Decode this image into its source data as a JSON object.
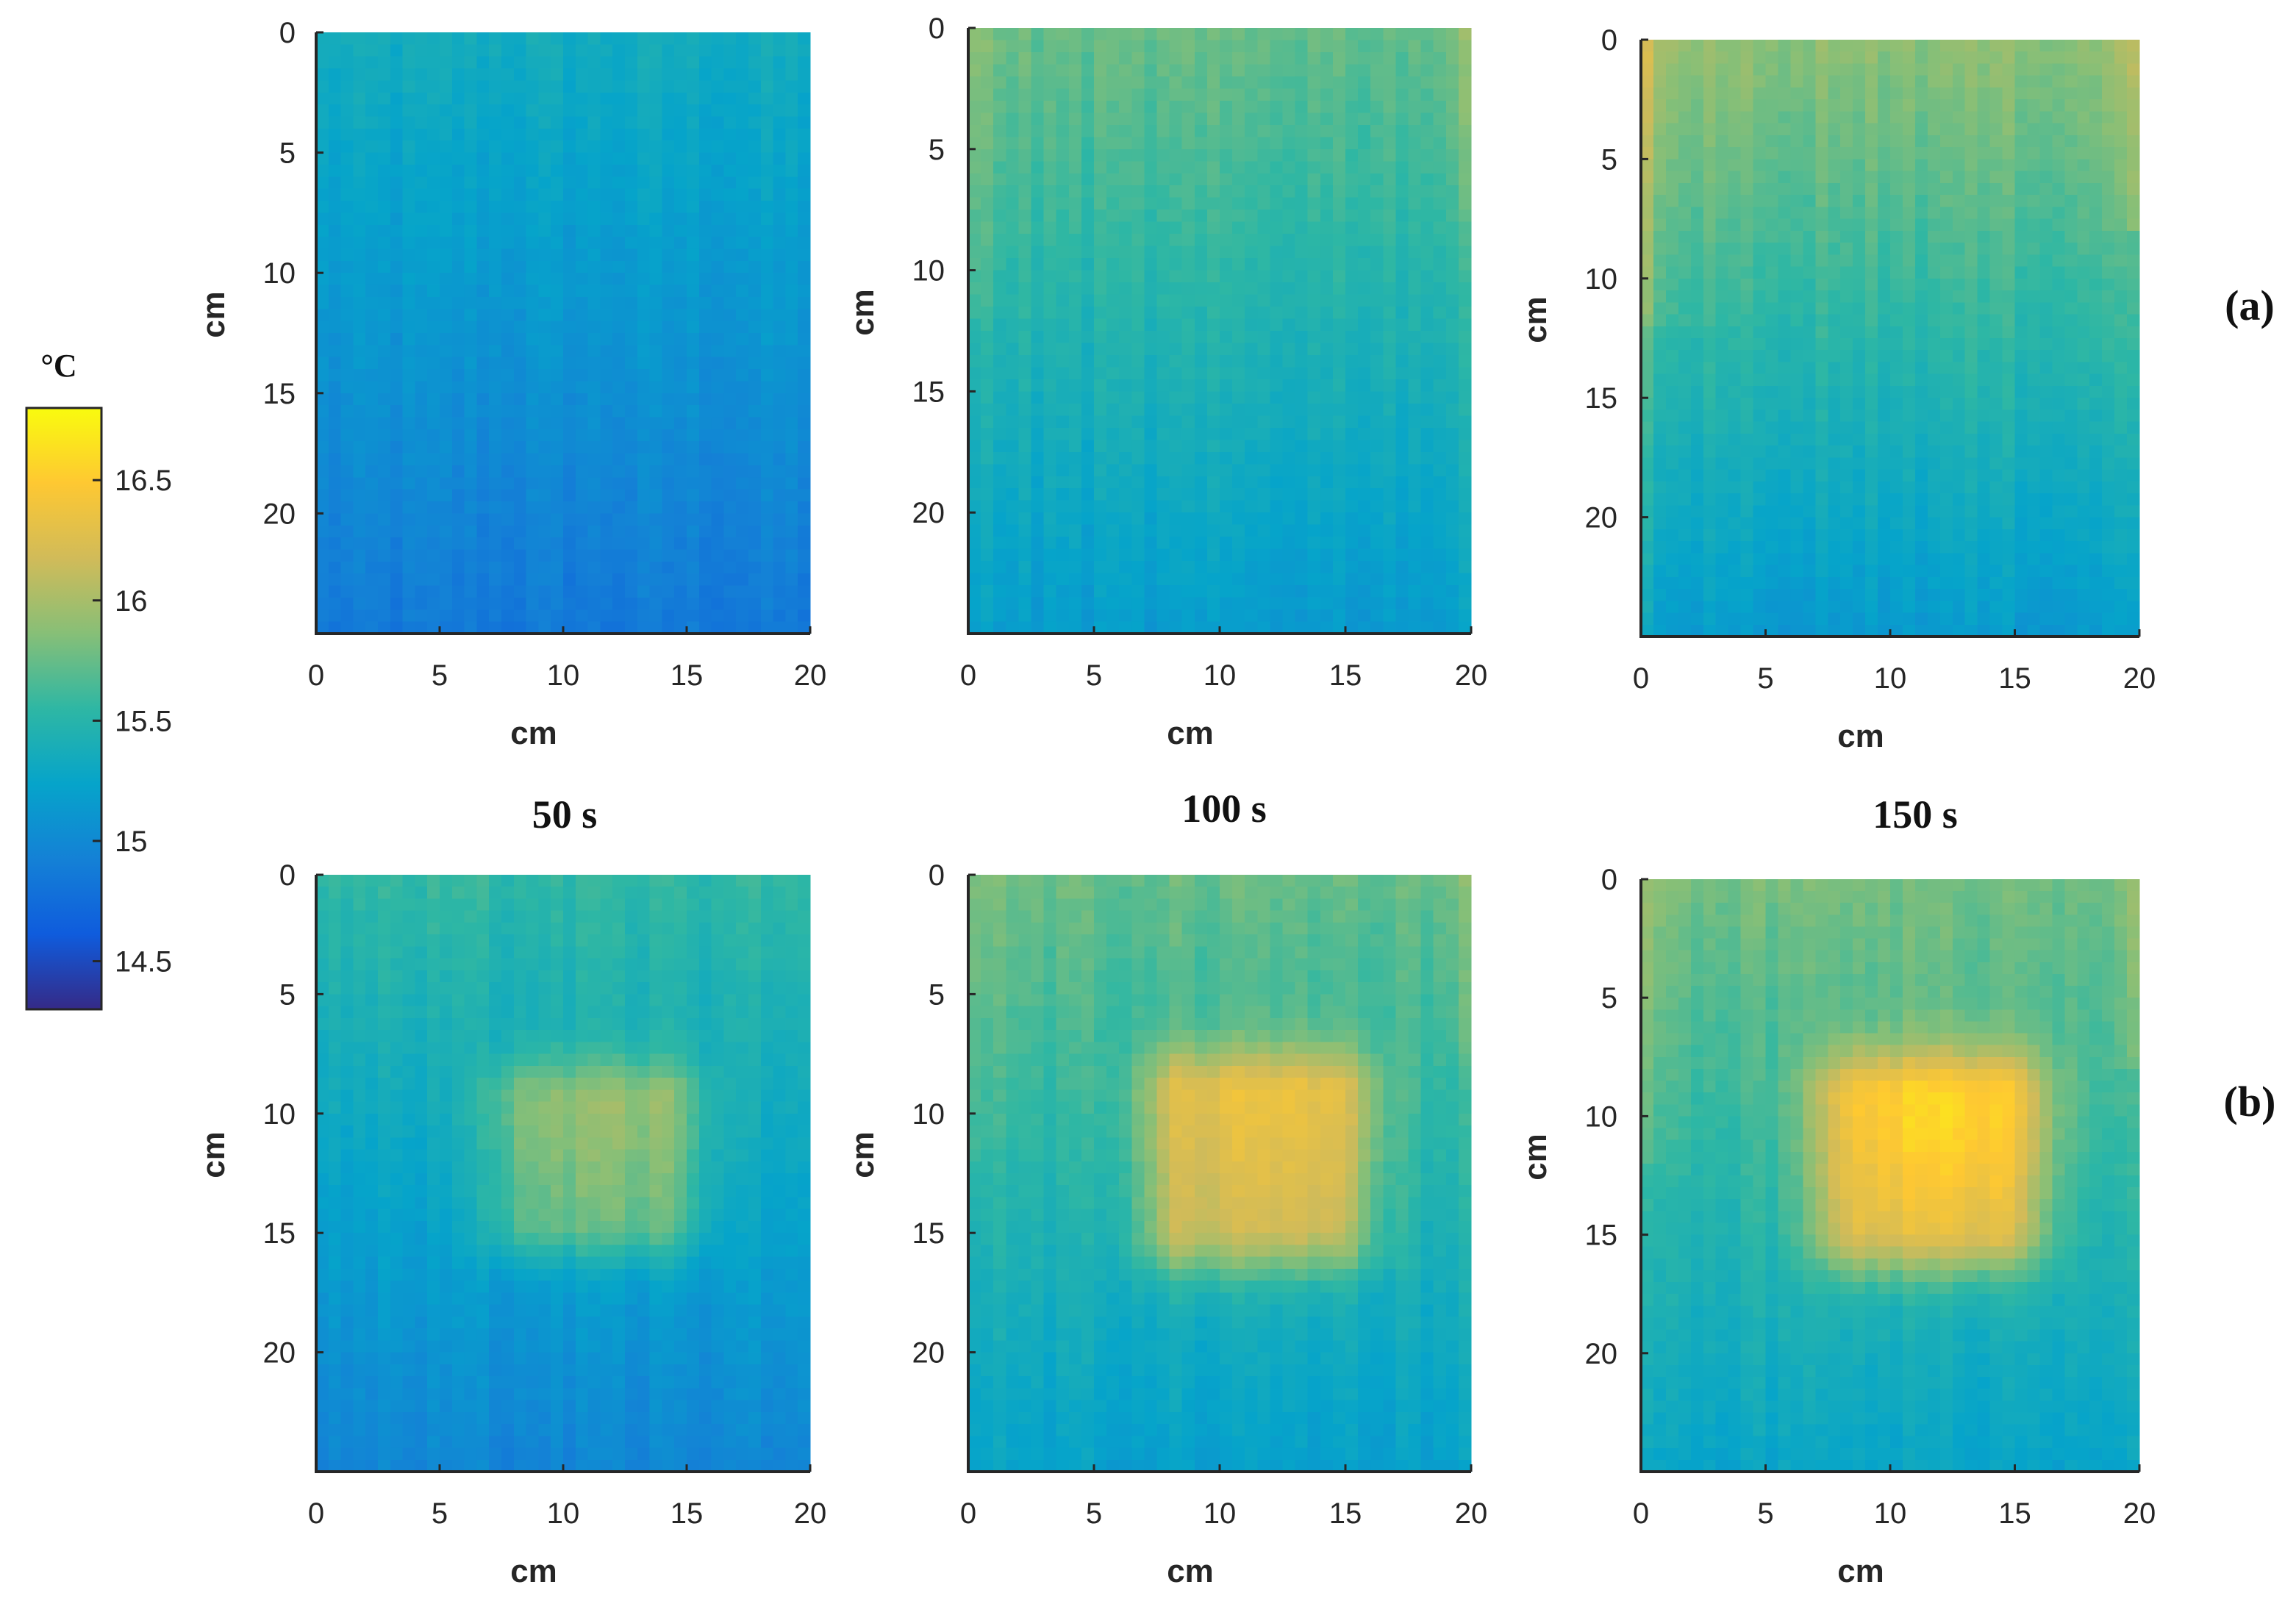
{
  "figure": {
    "colorbar": {
      "unit": "°C",
      "range": [
        14.3,
        16.8
      ],
      "ticks": [
        "14.5",
        "15",
        "15.5",
        "16",
        "16.5"
      ],
      "tick_values": [
        14.5,
        15,
        15.5,
        16,
        16.5
      ],
      "colormap": "parula",
      "colormap_stops": [
        "#352a87",
        "#0f5cdd",
        "#1481d6",
        "#06a4ca",
        "#2eb7a4",
        "#87bf77",
        "#d1bb59",
        "#fec832",
        "#f9fb0e"
      ]
    },
    "row_labels": [
      "(a)",
      "(b)"
    ],
    "time_labels": [
      "50 s",
      "100 s",
      "150 s"
    ]
  },
  "chart_data": [
    {
      "id": "a-50",
      "row": "(a)",
      "time": "50 s",
      "type": "heatmap",
      "xlabel": "cm",
      "ylabel": "cm",
      "xlim": [
        0,
        20
      ],
      "ylim": [
        0,
        25
      ],
      "xticks": [
        0,
        5,
        10,
        15,
        20
      ],
      "yticks": [
        0,
        5,
        10,
        15,
        20
      ],
      "base_top": 15.35,
      "base_bottom": 14.85,
      "hot_spot": null,
      "edge_warm": 0.0
    },
    {
      "id": "a-100",
      "row": "(a)",
      "time": "100 s",
      "type": "heatmap",
      "xlabel": "cm",
      "ylabel": "cm",
      "xlim": [
        0,
        20
      ],
      "ylim": [
        0,
        25
      ],
      "xticks": [
        0,
        5,
        10,
        15,
        20
      ],
      "yticks": [
        0,
        5,
        10,
        15,
        20
      ],
      "base_top": 15.75,
      "base_bottom": 15.15,
      "hot_spot": null,
      "edge_warm": 0.25
    },
    {
      "id": "a-150",
      "row": "(a)",
      "time": "150 s",
      "type": "heatmap",
      "xlabel": "cm",
      "ylabel": "cm",
      "xlim": [
        0,
        20
      ],
      "ylim": [
        0,
        25
      ],
      "xticks": [
        0,
        5,
        10,
        15,
        20
      ],
      "yticks": [
        0,
        5,
        10,
        15,
        20
      ],
      "base_top": 15.9,
      "base_bottom": 15.15,
      "hot_spot": null,
      "edge_warm": 0.4
    },
    {
      "id": "b-50",
      "row": "(b)",
      "time": "50 s",
      "type": "heatmap",
      "xlabel": "cm",
      "ylabel": "cm",
      "xlim": [
        0,
        20
      ],
      "ylim": [
        0,
        25
      ],
      "xticks": [
        0,
        5,
        10,
        15,
        20
      ],
      "yticks": [
        0,
        5,
        10,
        15,
        20
      ],
      "base_top": 15.55,
      "base_bottom": 14.95,
      "hot_spot": {
        "x0": 6.5,
        "x1": 16,
        "y0": 7.5,
        "y1": 16.5,
        "peak": 16.05
      },
      "edge_warm": 0.0
    },
    {
      "id": "b-100",
      "row": "(b)",
      "time": "100 s",
      "type": "heatmap",
      "xlabel": "cm",
      "ylabel": "cm",
      "xlim": [
        0,
        20
      ],
      "ylim": [
        0,
        25
      ],
      "xticks": [
        0,
        5,
        10,
        15,
        20
      ],
      "yticks": [
        0,
        5,
        10,
        15,
        20
      ],
      "base_top": 15.75,
      "base_bottom": 15.2,
      "hot_spot": {
        "x0": 6.5,
        "x1": 16.5,
        "y0": 7,
        "y1": 17,
        "peak": 16.45
      },
      "edge_warm": 0.2
    },
    {
      "id": "b-150",
      "row": "(b)",
      "time": "150 s",
      "type": "heatmap",
      "xlabel": "cm",
      "ylabel": "cm",
      "xlim": [
        0,
        20
      ],
      "ylim": [
        0,
        25
      ],
      "xticks": [
        0,
        5,
        10,
        15,
        20
      ],
      "yticks": [
        0,
        5,
        10,
        15,
        20
      ],
      "base_top": 15.8,
      "base_bottom": 15.25,
      "hot_spot": {
        "x0": 6.5,
        "x1": 16.5,
        "y0": 7,
        "y1": 17,
        "peak": 16.55
      },
      "edge_warm": 0.3
    }
  ]
}
